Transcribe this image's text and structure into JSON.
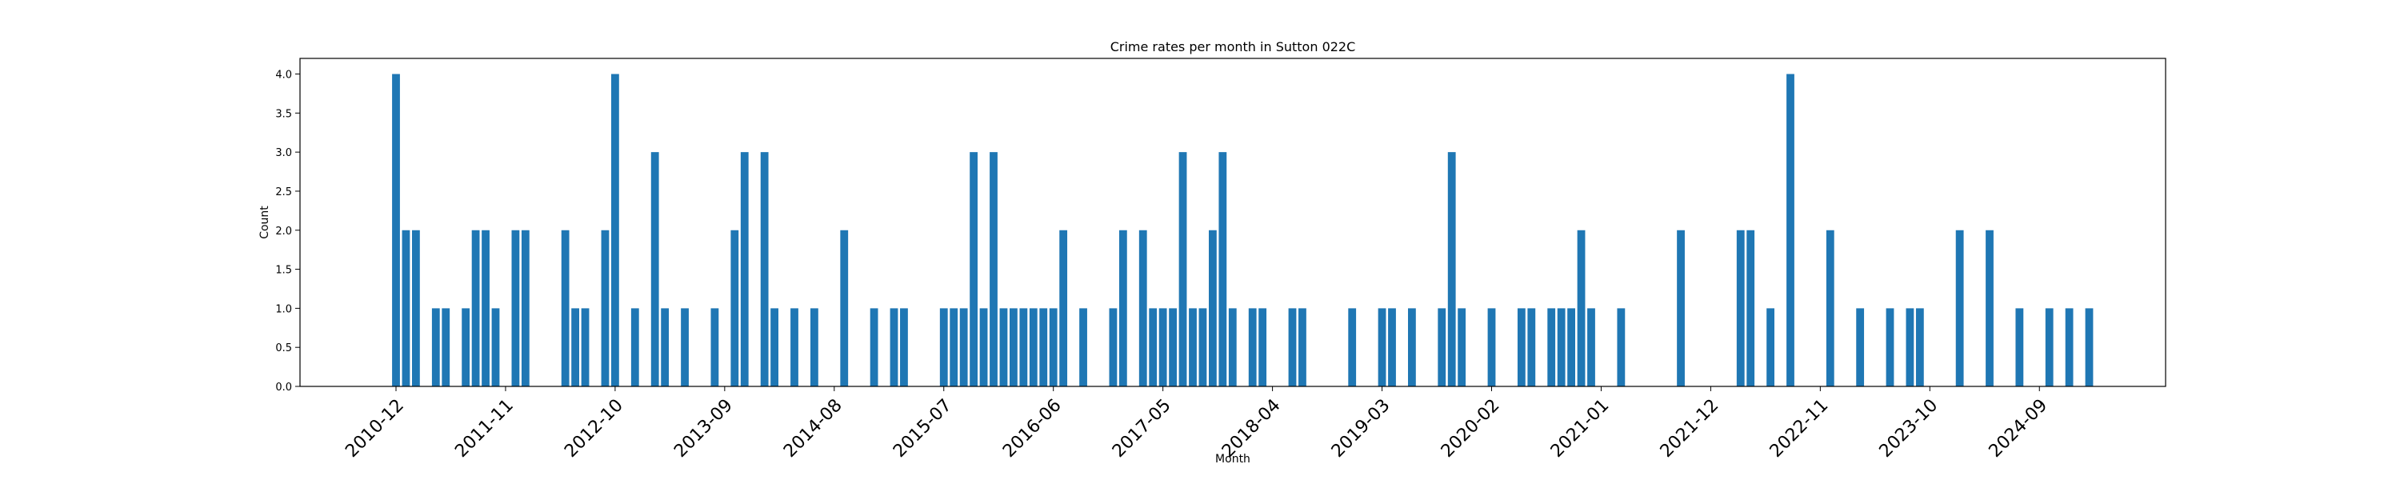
{
  "chart_data": {
    "type": "bar",
    "title": "Crime rates per month in Sutton 022C",
    "xlabel": "Month",
    "ylabel": "Count",
    "ylim": [
      0,
      4.2
    ],
    "yticks": [
      "0.0",
      "0.5",
      "1.0",
      "1.5",
      "2.0",
      "2.5",
      "3.0",
      "3.5",
      "4.0"
    ],
    "x_tick_labels": [
      "2010-12",
      "2011-11",
      "2012-10",
      "2013-09",
      "2014-08",
      "2015-07",
      "2016-06",
      "2017-05",
      "2018-04",
      "2019-03",
      "2020-02",
      "2021-01",
      "2021-12",
      "2022-11",
      "2023-10",
      "2024-09"
    ],
    "grid": false,
    "bar_color": "#1f77b4",
    "categories": [
      "2010-12",
      "2011-01",
      "2011-02",
      "2011-04",
      "2011-05",
      "2011-07",
      "2011-08",
      "2011-09",
      "2011-10",
      "2011-12",
      "2012-01",
      "2012-05",
      "2012-06",
      "2012-07",
      "2012-09",
      "2012-10",
      "2012-12",
      "2013-02",
      "2013-03",
      "2013-05",
      "2013-08",
      "2013-10",
      "2013-11",
      "2014-01",
      "2014-02",
      "2014-04",
      "2014-06",
      "2014-09",
      "2014-12",
      "2015-02",
      "2015-03",
      "2015-07",
      "2015-08",
      "2015-09",
      "2015-10",
      "2015-11",
      "2015-12",
      "2016-01",
      "2016-02",
      "2016-03",
      "2016-04",
      "2016-05",
      "2016-06",
      "2016-07",
      "2016-09",
      "2016-12",
      "2017-01",
      "2017-03",
      "2017-04",
      "2017-05",
      "2017-06",
      "2017-07",
      "2017-08",
      "2017-09",
      "2017-10",
      "2017-11",
      "2017-12",
      "2018-02",
      "2018-03",
      "2018-06",
      "2018-07",
      "2018-12",
      "2019-03",
      "2019-04",
      "2019-06",
      "2019-09",
      "2019-10",
      "2019-11",
      "2020-02",
      "2020-05",
      "2020-06",
      "2020-08",
      "2020-09",
      "2020-10",
      "2020-11",
      "2020-12",
      "2021-03",
      "2021-09",
      "2022-03",
      "2022-04",
      "2022-06",
      "2022-08",
      "2022-12",
      "2023-03",
      "2023-06",
      "2023-08",
      "2023-09",
      "2024-01",
      "2024-04",
      "2024-07",
      "2024-10",
      "2024-12",
      "2025-02"
    ],
    "values": [
      4,
      2,
      2,
      1,
      1,
      1,
      2,
      2,
      1,
      2,
      2,
      2,
      1,
      1,
      2,
      4,
      1,
      3,
      1,
      1,
      1,
      2,
      3,
      3,
      1,
      1,
      1,
      2,
      1,
      1,
      1,
      1,
      1,
      1,
      3,
      1,
      3,
      1,
      1,
      1,
      1,
      1,
      1,
      2,
      1,
      1,
      2,
      2,
      1,
      1,
      1,
      3,
      1,
      1,
      2,
      3,
      1,
      1,
      1,
      1,
      1,
      1,
      1,
      1,
      1,
      1,
      3,
      1,
      1,
      1,
      1,
      1,
      1,
      1,
      2,
      1,
      1,
      2,
      2,
      2,
      1,
      4,
      2,
      1,
      1,
      1,
      1,
      2,
      2,
      1,
      1,
      1,
      1
    ]
  }
}
